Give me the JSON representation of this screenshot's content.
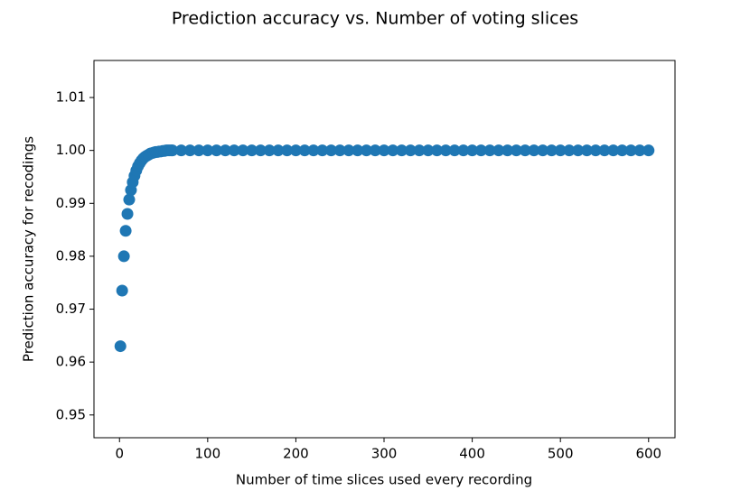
{
  "chart_data": {
    "type": "scatter",
    "title": "Prediction accuracy vs. Number of voting slices",
    "x_label": "Number of time slices used every recording",
    "y_label": "Prediction accuracy for recodings",
    "color": "#1f77b4",
    "x": [
      1,
      3,
      5,
      7,
      9,
      11,
      13,
      15,
      17,
      19,
      21,
      23,
      25,
      27,
      29,
      31,
      33,
      35,
      37,
      39,
      41,
      43,
      45,
      47,
      49,
      51,
      53,
      55,
      57,
      59,
      60,
      70,
      80,
      90,
      100,
      110,
      120,
      130,
      140,
      150,
      160,
      170,
      180,
      190,
      200,
      210,
      220,
      230,
      240,
      250,
      260,
      270,
      280,
      290,
      300,
      310,
      320,
      330,
      340,
      350,
      360,
      370,
      380,
      390,
      400,
      410,
      420,
      430,
      440,
      450,
      460,
      470,
      480,
      490,
      500,
      510,
      520,
      530,
      540,
      550,
      560,
      570,
      580,
      590,
      600
    ],
    "values": [
      0.963,
      0.9735,
      0.98,
      0.9848,
      0.988,
      0.9907,
      0.9925,
      0.994,
      0.9952,
      0.9962,
      0.997,
      0.9976,
      0.9981,
      0.9985,
      0.9988,
      0.999,
      0.9992,
      0.9994,
      0.9995,
      0.9996,
      0.9997,
      0.9997,
      0.9998,
      0.9998,
      0.9999,
      0.9999,
      1,
      1,
      1,
      1,
      1,
      1,
      1,
      1,
      1,
      1,
      1,
      1,
      1,
      1,
      1,
      1,
      1,
      1,
      1,
      1,
      1,
      1,
      1,
      1,
      1,
      1,
      1,
      1,
      1,
      1,
      1,
      1,
      1,
      1,
      1,
      1,
      1,
      1,
      1,
      1,
      1,
      1,
      1,
      1,
      1,
      1,
      1,
      1,
      1,
      1,
      1,
      1,
      1,
      1,
      1,
      1,
      1,
      1,
      1
    ],
    "xlim": [
      -28.95,
      629.95
    ],
    "ylim": [
      0.9457,
      1.017
    ],
    "xticks": [
      0,
      100,
      200,
      300,
      400,
      500,
      600
    ],
    "yticks": [
      0.95,
      0.96,
      0.97,
      0.98,
      0.99,
      {
        "value": 1,
        "label": "1.00"
      },
      1.01
    ]
  }
}
